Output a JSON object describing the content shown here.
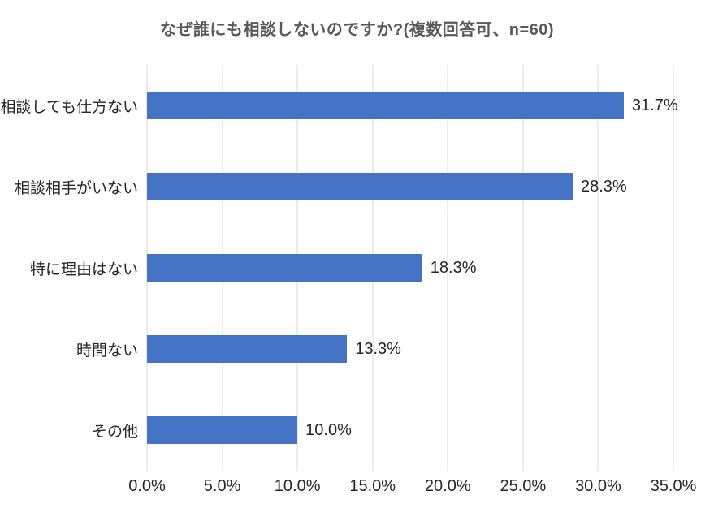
{
  "chart_data": {
    "type": "bar",
    "orientation": "horizontal",
    "title": "なぜ誰にも相談しないのですか?(複数回答可、n=60)",
    "categories": [
      "相談しても仕方ない",
      "相談相手がいない",
      "特に理由はない",
      "時間ない",
      "その他"
    ],
    "values": [
      31.7,
      28.3,
      18.3,
      13.3,
      10.0
    ],
    "data_labels": [
      "31.7%",
      "28.3%",
      "18.3%",
      "13.3%",
      "10.0%"
    ],
    "x_ticks": [
      "0.0%",
      "5.0%",
      "10.0%",
      "15.0%",
      "20.0%",
      "25.0%",
      "30.0%",
      "35.0%"
    ],
    "xlim": [
      0,
      35
    ],
    "grid": true,
    "legend": "none",
    "colors": {
      "bar": "#4472C4",
      "gridline": "#D9D9D9",
      "title": "#595959",
      "label": "#262626",
      "background": "#FFFFFF"
    }
  }
}
